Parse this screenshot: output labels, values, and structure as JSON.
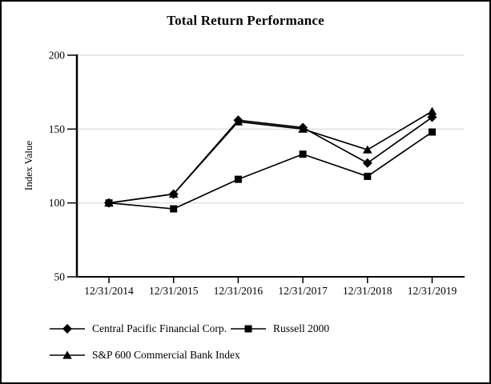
{
  "title": "Total Return Performance",
  "chart_data": {
    "type": "line",
    "title": "Total Return Performance",
    "xlabel": "",
    "ylabel": "Index Value",
    "categories": [
      "12/31/2014",
      "12/31/2015",
      "12/31/2016",
      "12/31/2017",
      "12/31/2018",
      "12/31/2019"
    ],
    "series": [
      {
        "name": "Central Pacific Financial Corp.",
        "marker": "diamond",
        "values": [
          100,
          106,
          156,
          151,
          127,
          158
        ]
      },
      {
        "name": "Russell 2000",
        "marker": "square",
        "values": [
          100,
          96,
          116,
          133,
          118,
          148
        ]
      },
      {
        "name": "S&P 600 Commercial Bank Index",
        "marker": "triangle",
        "values": [
          100,
          106,
          155,
          150,
          136,
          162
        ]
      }
    ],
    "ylim": [
      50,
      200
    ],
    "y_ticks": [
      50,
      100,
      150,
      200
    ],
    "gridline_values": [
      100,
      150,
      200
    ],
    "grid": true,
    "legend_position": "bottom-left",
    "colors": {
      "series_color": "#000000",
      "gridline": "#d9d9d9",
      "axis": "#000000",
      "background": "#ffffff",
      "frame_border": "#000000"
    }
  }
}
